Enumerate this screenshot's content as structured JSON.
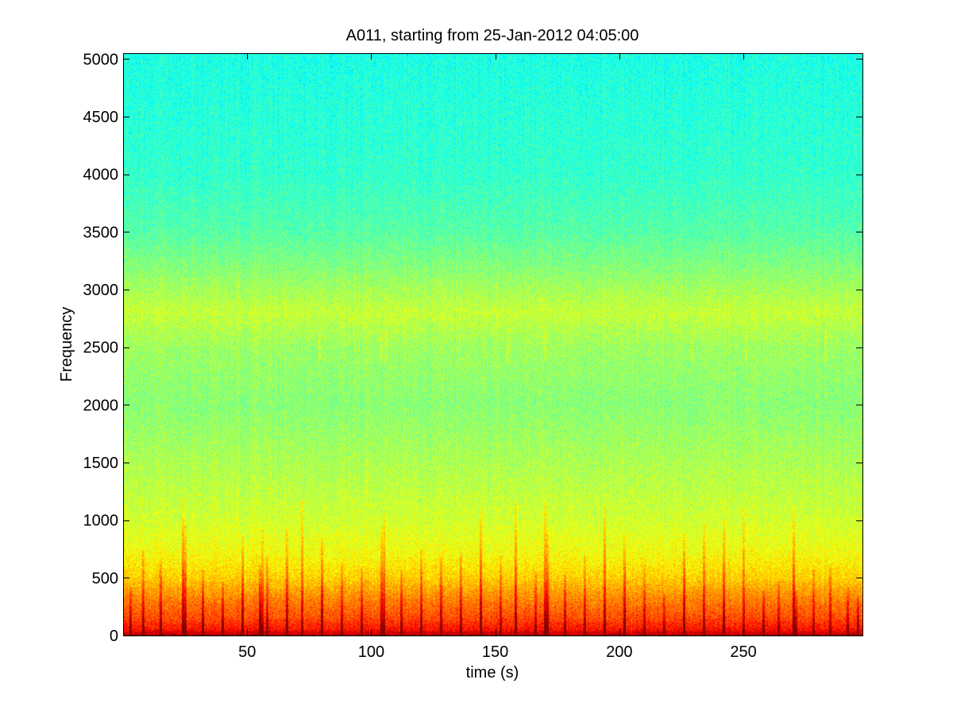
{
  "chart_data": {
    "type": "heatmap",
    "title": "A011, starting from 25-Jan-2012 04:05:00",
    "xlabel": "time (s)",
    "ylabel": "Frequency",
    "xlim": [
      0,
      298
    ],
    "ylim": [
      0,
      5050
    ],
    "x_ticks": [
      50,
      100,
      150,
      200,
      250
    ],
    "y_ticks": [
      0,
      500,
      1000,
      1500,
      2000,
      2500,
      3000,
      3500,
      4000,
      4500,
      5000
    ],
    "colormap": "jet",
    "grid": false,
    "colors": {
      "background": "#ffffff",
      "axes": "#000000"
    },
    "intensity_profile": {
      "frequency": [
        0,
        50,
        150,
        300,
        500,
        700,
        1000,
        1500,
        2000,
        2500,
        2800,
        3200,
        3500,
        4000,
        5050
      ],
      "level": [
        0.96,
        0.86,
        0.8,
        0.75,
        0.67,
        0.62,
        0.58,
        0.545,
        0.51,
        0.53,
        0.57,
        0.505,
        0.46,
        0.425,
        0.4
      ]
    },
    "transient_events_s": [
      3,
      8,
      15,
      24,
      25,
      32,
      40,
      48,
      55,
      56,
      58,
      66,
      72,
      80,
      88,
      96,
      104,
      105,
      112,
      120,
      128,
      136,
      144,
      152,
      158,
      166,
      170,
      171,
      178,
      186,
      194,
      202,
      210,
      218,
      226,
      234,
      242,
      250,
      258,
      264,
      270,
      271,
      278,
      285,
      292,
      296
    ],
    "band_bursts_s": [
      79,
      104,
      106,
      155,
      170,
      229,
      251,
      283
    ]
  }
}
